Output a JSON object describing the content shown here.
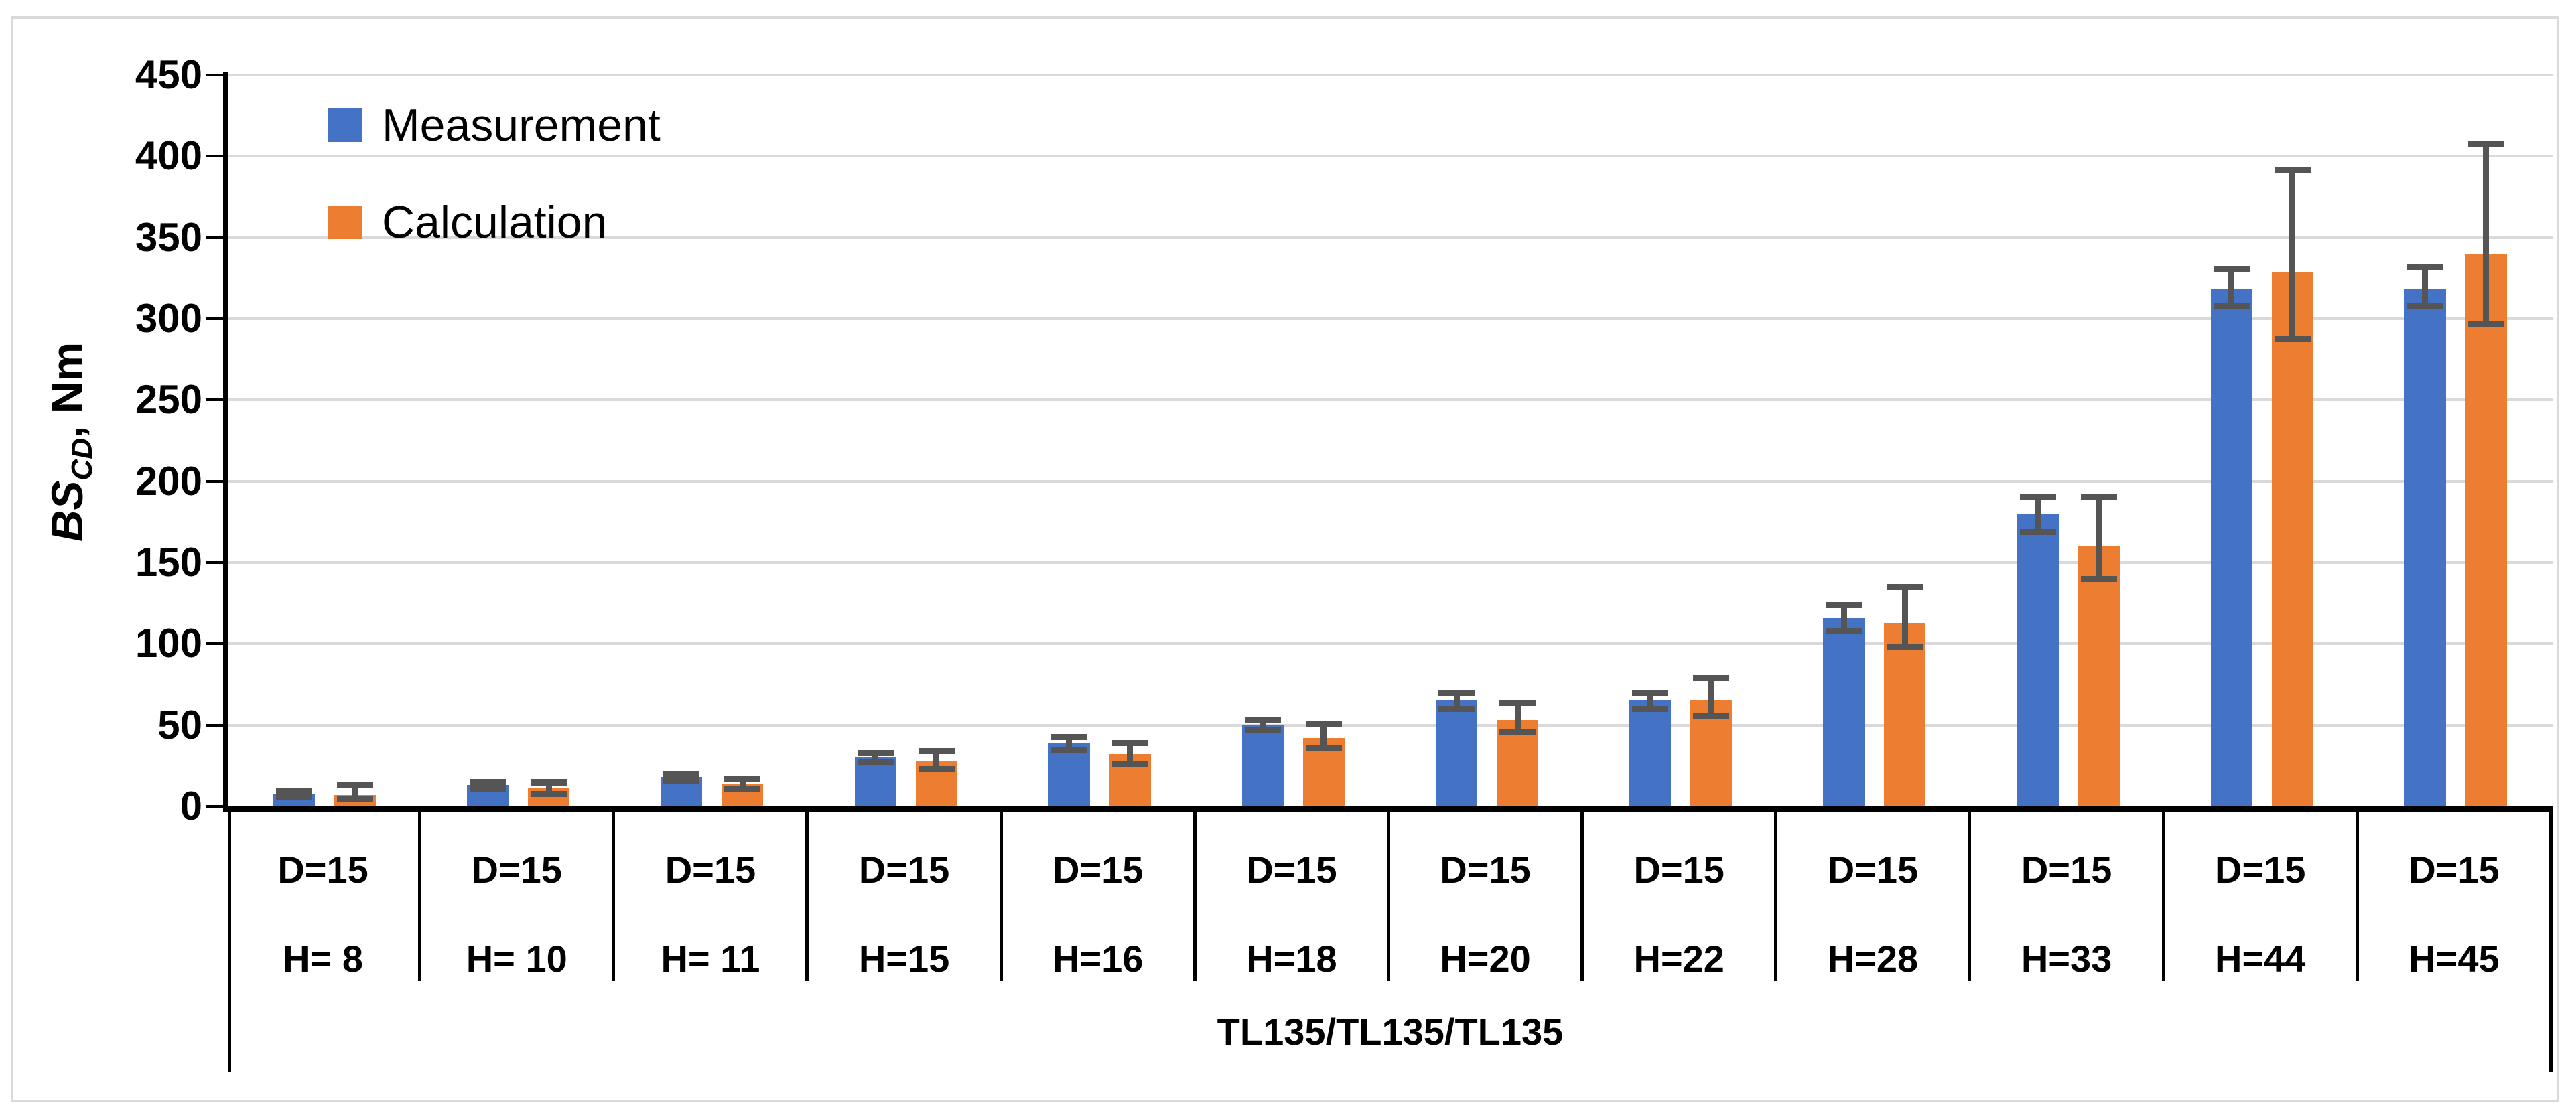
{
  "chart_data": {
    "type": "bar",
    "title": "",
    "ylabel": {
      "main": "BS",
      "sub": "CD",
      "rest": ", Nm"
    },
    "y_axis": {
      "min": 0,
      "max": 450,
      "step": 50,
      "ticks": [
        0,
        50,
        100,
        150,
        200,
        250,
        300,
        350,
        400,
        450
      ]
    },
    "legend_position": "top-left-inside",
    "grid": true,
    "group_label": "TL135/TL135/TL135",
    "categories": [
      {
        "d": "D=15",
        "h": "H= 8"
      },
      {
        "d": "D=15",
        "h": "H= 10"
      },
      {
        "d": "D=15",
        "h": "H= 11"
      },
      {
        "d": "D=15",
        "h": "H=15"
      },
      {
        "d": "D=15",
        "h": "H=16"
      },
      {
        "d": "D=15",
        "h": "H=18"
      },
      {
        "d": "D=15",
        "h": "H=20"
      },
      {
        "d": "D=15",
        "h": "H=22"
      },
      {
        "d": "D=15",
        "h": "H=28"
      },
      {
        "d": "D=15",
        "h": "H=33"
      },
      {
        "d": "D=15",
        "h": "H=44"
      },
      {
        "d": "D=15",
        "h": "H=45"
      }
    ],
    "series": [
      {
        "name": "Measurement",
        "color": "#4472C4",
        "values": [
          8,
          13,
          18,
          30,
          39,
          50,
          65,
          65,
          116,
          180,
          318,
          318
        ],
        "err_low": [
          6,
          11,
          16,
          27,
          35,
          47,
          60,
          60,
          108,
          169,
          308,
          308
        ],
        "err_high": [
          10,
          15,
          20,
          33,
          43,
          53,
          70,
          70,
          124,
          191,
          331,
          332
        ]
      },
      {
        "name": "Calculation",
        "color": "#ED7D31",
        "values": [
          7,
          11,
          14,
          28,
          32,
          42,
          53,
          65,
          113,
          160,
          329,
          340
        ],
        "err_low": [
          5,
          8,
          11,
          23,
          26,
          36,
          46,
          56,
          98,
          140,
          288,
          297
        ],
        "err_high": [
          13,
          15,
          17,
          34,
          39,
          51,
          64,
          79,
          135,
          191,
          392,
          408
        ]
      }
    ],
    "colors": {
      "error_bar": "#555555",
      "gridline": "#d9d9d9",
      "axis": "#000000",
      "figure_border": "#d9d9d9"
    }
  }
}
